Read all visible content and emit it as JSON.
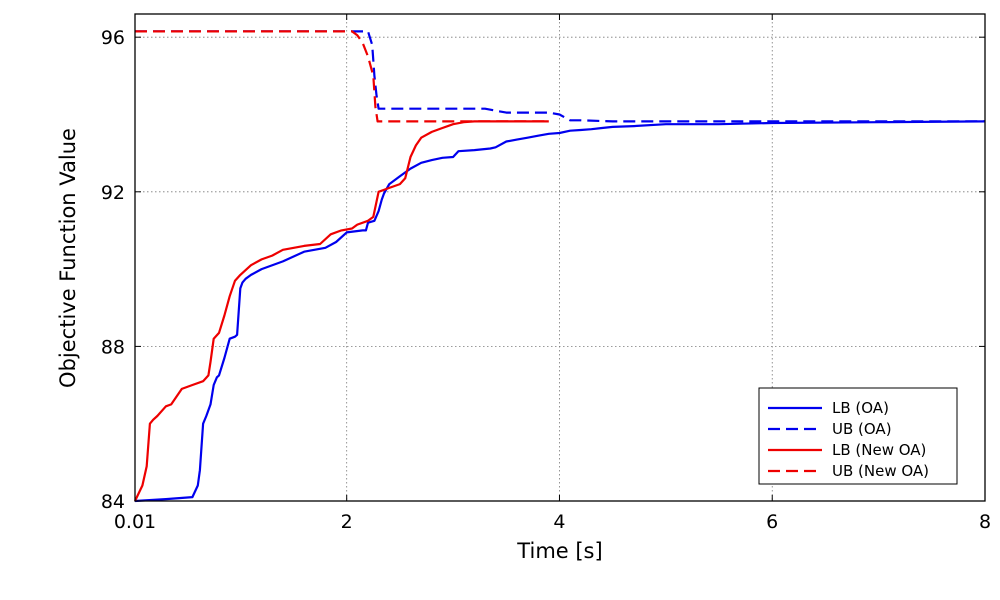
{
  "chart_data": {
    "type": "line",
    "xlabel": "Time [s]",
    "ylabel": "Objective Function Value",
    "xlim": [
      0.01,
      8
    ],
    "ylim": [
      84,
      96.6
    ],
    "xticks": [
      0.01,
      2,
      4,
      6,
      8
    ],
    "xtick_labels": [
      "0.01",
      "2",
      "4",
      "6",
      "8"
    ],
    "yticks": [
      84,
      88,
      92,
      96
    ],
    "ytick_labels": [
      "84",
      "88",
      "92",
      "96"
    ],
    "grid": true,
    "legend_position": "bottom-right",
    "series": [
      {
        "name": "LB (OA)",
        "color": "#0000ee",
        "style": "solid",
        "x": [
          0.01,
          0.3,
          0.55,
          0.6,
          0.62,
          0.65,
          0.68,
          0.72,
          0.75,
          0.78,
          0.8,
          0.85,
          0.9,
          0.95,
          0.97,
          1.0,
          1.02,
          1.05,
          1.1,
          1.2,
          1.4,
          1.6,
          1.8,
          1.9,
          2.0,
          2.15,
          2.18,
          2.2,
          2.26,
          2.3,
          2.33,
          2.35,
          2.4,
          2.5,
          2.6,
          2.7,
          2.8,
          2.9,
          3.0,
          3.05,
          3.2,
          3.35,
          3.4,
          3.5,
          3.6,
          3.7,
          3.8,
          3.9,
          4.0,
          4.1,
          4.2,
          4.3,
          4.4,
          4.5,
          4.7,
          5.0,
          5.5,
          6.0,
          7.0,
          8.0
        ],
        "values": [
          84.0,
          84.05,
          84.1,
          84.4,
          84.8,
          86.0,
          86.2,
          86.5,
          87.0,
          87.2,
          87.25,
          87.7,
          88.2,
          88.25,
          88.3,
          89.5,
          89.65,
          89.75,
          89.85,
          90.0,
          90.2,
          90.45,
          90.55,
          90.7,
          90.95,
          91.0,
          91.0,
          91.2,
          91.25,
          91.5,
          91.8,
          91.95,
          92.2,
          92.4,
          92.6,
          92.75,
          92.82,
          92.88,
          92.9,
          93.05,
          93.08,
          93.12,
          93.15,
          93.3,
          93.35,
          93.4,
          93.45,
          93.5,
          93.52,
          93.58,
          93.6,
          93.62,
          93.65,
          93.68,
          93.7,
          93.75,
          93.75,
          93.78,
          93.8,
          93.82
        ]
      },
      {
        "name": "UB (OA)",
        "color": "#0000ee",
        "style": "dashed",
        "x": [
          0.01,
          2.2,
          2.24,
          2.26,
          2.28,
          2.3,
          2.4,
          3.0,
          3.3,
          3.5,
          3.7,
          3.9,
          4.0,
          4.1,
          4.2,
          4.5,
          5.0,
          6.0,
          7.0,
          8.0
        ],
        "values": [
          96.15,
          96.15,
          95.8,
          95.0,
          94.5,
          94.15,
          94.15,
          94.15,
          94.15,
          94.05,
          94.05,
          94.05,
          94.0,
          93.85,
          93.85,
          93.82,
          93.82,
          93.82,
          93.82,
          93.82
        ]
      },
      {
        "name": "LB (New OA)",
        "color": "#ee0000",
        "style": "solid",
        "x": [
          0.01,
          0.08,
          0.12,
          0.15,
          0.18,
          0.22,
          0.3,
          0.35,
          0.4,
          0.45,
          0.55,
          0.65,
          0.7,
          0.72,
          0.75,
          0.8,
          0.85,
          0.9,
          0.95,
          1.0,
          1.1,
          1.2,
          1.3,
          1.4,
          1.6,
          1.75,
          1.85,
          1.95,
          2.05,
          2.1,
          2.2,
          2.25,
          2.3,
          2.35,
          2.4,
          2.5,
          2.55,
          2.6,
          2.65,
          2.7,
          2.8,
          2.9,
          3.0,
          3.1,
          3.2,
          3.4,
          3.6,
          3.8,
          3.9
        ],
        "values": [
          84.0,
          84.4,
          84.9,
          86.0,
          86.1,
          86.2,
          86.45,
          86.5,
          86.7,
          86.9,
          87.0,
          87.1,
          87.25,
          87.6,
          88.2,
          88.35,
          88.8,
          89.3,
          89.7,
          89.85,
          90.1,
          90.25,
          90.35,
          90.5,
          90.6,
          90.65,
          90.9,
          91.0,
          91.05,
          91.15,
          91.25,
          91.35,
          92.0,
          92.05,
          92.1,
          92.2,
          92.35,
          92.9,
          93.2,
          93.4,
          93.55,
          93.65,
          93.75,
          93.8,
          93.82,
          93.82,
          93.82,
          93.82,
          93.82
        ]
      },
      {
        "name": "UB (New OA)",
        "color": "#ee0000",
        "style": "dashed",
        "x": [
          0.01,
          2.05,
          2.1,
          2.15,
          2.2,
          2.25,
          2.27,
          2.29,
          2.4,
          3.0,
          3.5,
          3.9
        ],
        "values": [
          96.15,
          96.15,
          96.05,
          95.85,
          95.5,
          95.0,
          94.2,
          93.82,
          93.82,
          93.82,
          93.82,
          93.82
        ]
      }
    ]
  }
}
